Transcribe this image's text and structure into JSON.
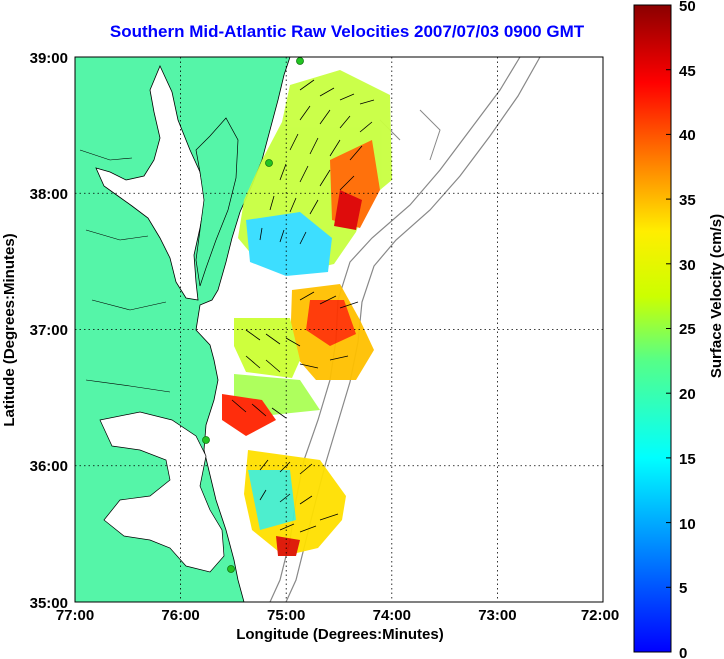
{
  "title": "Southern Mid-Atlantic Raw Velocities 2007/07/03 0900 GMT",
  "axes": {
    "xlabel": "Longitude (Degrees:Minutes)",
    "ylabel": "Latitude (Degrees:Minutes)",
    "xticks": [
      "77:00",
      "76:00",
      "75:00",
      "74:00",
      "73:00",
      "72:00"
    ],
    "yticks": [
      "39:00",
      "38:00",
      "37:00",
      "36:00",
      "35:00"
    ]
  },
  "colorbar": {
    "label": "Surface Velocity (cm/s)",
    "ticks": [
      "50",
      "45",
      "40",
      "35",
      "30",
      "25",
      "20",
      "15",
      "10",
      "5",
      "0"
    ],
    "range": [
      0,
      50
    ],
    "colormap": "jet"
  },
  "colors": {
    "title": "#0000ff",
    "land": "#55f5a8",
    "station": "#22c422",
    "grid": "#000000"
  },
  "map_extent": {
    "lon": [
      -77.0,
      -72.0
    ],
    "lat": [
      35.0,
      39.0
    ]
  }
}
